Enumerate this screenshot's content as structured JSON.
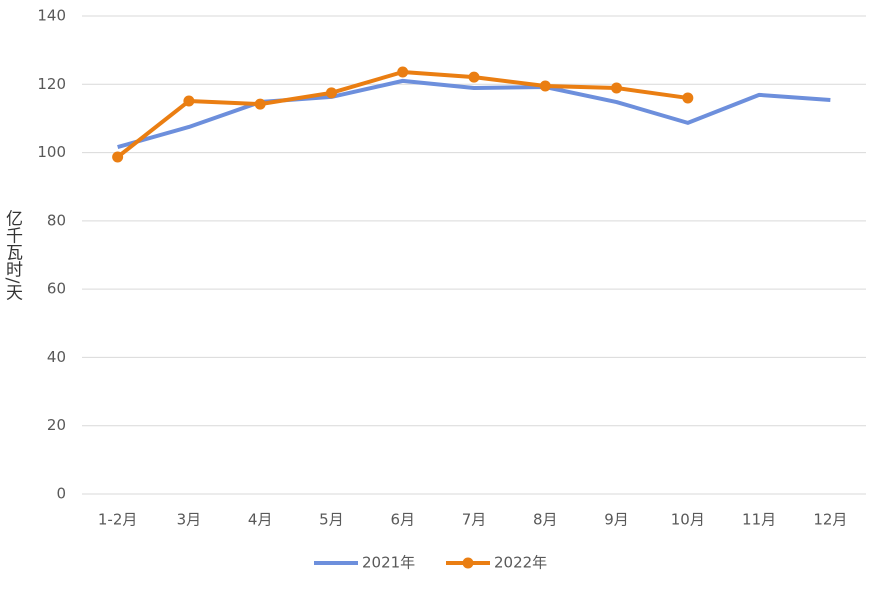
{
  "chart_data": {
    "type": "line",
    "y_label": "亿千瓦时/天",
    "categories": [
      "1-2月",
      "3月",
      "4月",
      "5月",
      "6月",
      "7月",
      "8月",
      "9月",
      "10月",
      "11月",
      "12月"
    ],
    "series": [
      {
        "name": "2021年",
        "color": "#6d8fdc",
        "markers": false,
        "values": [
          101.6,
          107.5,
          114.8,
          116.3,
          121,
          118.9,
          119.2,
          114.8,
          108.7,
          116.9,
          115.4
        ]
      },
      {
        "name": "2022年",
        "color": "#ea7e12",
        "markers": true,
        "values": [
          98.7,
          115.1,
          114.2,
          117.5,
          123.6,
          122.1,
          119.5,
          118.9,
          116,
          null,
          null
        ]
      }
    ],
    "ylim": [
      0,
      140
    ],
    "yticks": [
      0,
      20,
      40,
      60,
      80,
      100,
      120,
      140
    ],
    "grid": true
  }
}
